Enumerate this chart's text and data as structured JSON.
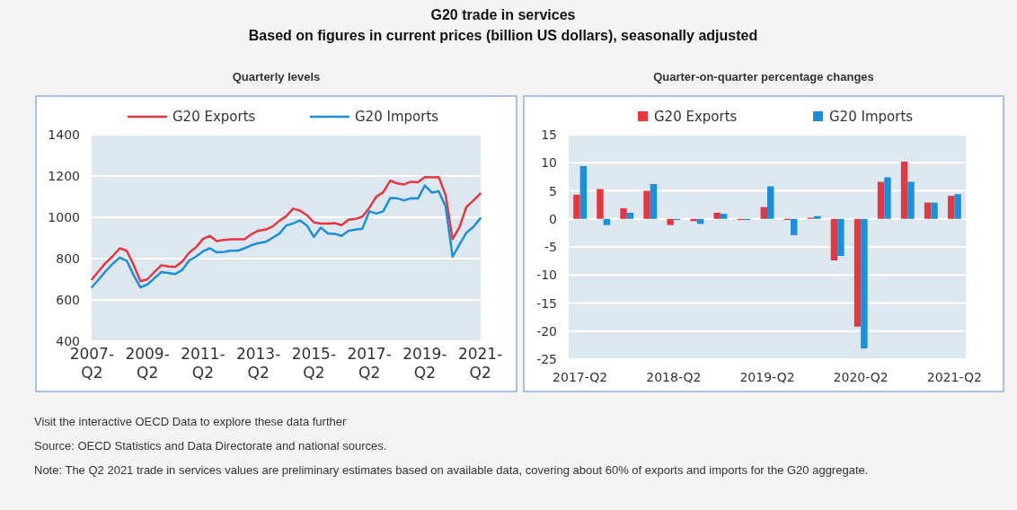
{
  "chart_data": [
    {
      "type": "other",
      "title": "G20 trade in services",
      "subtitle": "Based on figures in current prices (billion US dollars), seasonally adjusted",
      "annotations": [
        "Visit the interactive OECD Data to explore these data further",
        "Source: OECD Statistics and Data Directorate and national sources.",
        "Note: The Q2 2021 trade in services values are preliminary estimates based on available data, covering about 60% of exports and imports for the G20 aggregate."
      ]
    },
    {
      "type": "line",
      "title": "Quarterly levels",
      "categories": [
        "2007-Q2",
        null,
        null,
        null,
        null,
        null,
        null,
        null,
        "2009-Q2",
        null,
        null,
        null,
        null,
        null,
        null,
        null,
        "2011-Q2",
        null,
        null,
        null,
        null,
        null,
        null,
        null,
        "2013-Q2",
        null,
        null,
        null,
        null,
        null,
        null,
        null,
        "2015-Q2",
        null,
        null,
        null,
        null,
        null,
        null,
        null,
        "2017-Q2",
        null,
        null,
        null,
        null,
        null,
        null,
        null,
        "2019-Q2",
        null,
        null,
        null,
        null,
        null,
        null,
        null,
        "2021-Q2"
      ],
      "series": [
        {
          "name": "G20 Exports",
          "color": "#e8363f",
          "values": [
            700,
            740,
            780,
            812,
            850,
            838,
            770,
            690,
            700,
            735,
            768,
            762,
            760,
            785,
            828,
            855,
            895,
            910,
            885,
            890,
            893,
            893,
            893,
            918,
            935,
            940,
            955,
            982,
            1005,
            1042,
            1032,
            1010,
            975,
            970,
            970,
            972,
            962,
            988,
            992,
            1003,
            1046,
            1100,
            1121,
            1177,
            1164,
            1159,
            1172,
            1170,
            1195,
            1193,
            1195,
            1107,
            894,
            953,
            1050,
            1081,
            1115
          ]
        },
        {
          "name": "G20 Imports",
          "color": "#1b8fd9",
          "values": [
            662,
            700,
            740,
            775,
            805,
            790,
            720,
            660,
            675,
            705,
            735,
            730,
            725,
            745,
            790,
            810,
            835,
            850,
            830,
            833,
            838,
            838,
            850,
            865,
            875,
            880,
            900,
            920,
            960,
            970,
            985,
            960,
            905,
            950,
            922,
            920,
            910,
            935,
            940,
            945,
            1029,
            1018,
            1029,
            1093,
            1092,
            1082,
            1092,
            1091,
            1154,
            1120,
            1126,
            1052,
            809,
            869,
            926,
            953,
            995
          ]
        }
      ],
      "ylim": [
        400,
        1400
      ],
      "yticks": [
        400,
        600,
        800,
        1000,
        1200,
        1400
      ],
      "grid": "y",
      "legend": "top"
    },
    {
      "type": "bar",
      "title": "Quarter-on-quarter percentage changes",
      "categories": [
        "2017-Q2",
        null,
        null,
        null,
        "2018-Q2",
        null,
        null,
        null,
        "2019-Q2",
        null,
        null,
        null,
        "2020-Q2",
        null,
        null,
        null,
        "2021-Q2"
      ],
      "series": [
        {
          "name": "G20 Exports",
          "color": "#e8363f",
          "values": [
            4.3,
            5.3,
            1.9,
            5.0,
            -1.1,
            -0.4,
            1.1,
            -0.2,
            2.1,
            -0.2,
            0.2,
            -7.4,
            -19.2,
            6.6,
            10.2,
            2.9,
            4.1
          ]
        },
        {
          "name": "G20 Imports",
          "color": "#1b8fd9",
          "values": [
            9.4,
            -1.1,
            1.1,
            6.2,
            -0.2,
            -0.9,
            0.9,
            -0.2,
            5.8,
            -2.9,
            0.5,
            -6.6,
            -23.1,
            7.4,
            6.6,
            2.9,
            4.4
          ]
        }
      ],
      "ylim": [
        -25,
        15
      ],
      "yticks": [
        -25,
        -20,
        -15,
        -10,
        -5,
        0,
        5,
        10,
        15
      ],
      "grid": "y",
      "legend": "top"
    }
  ]
}
